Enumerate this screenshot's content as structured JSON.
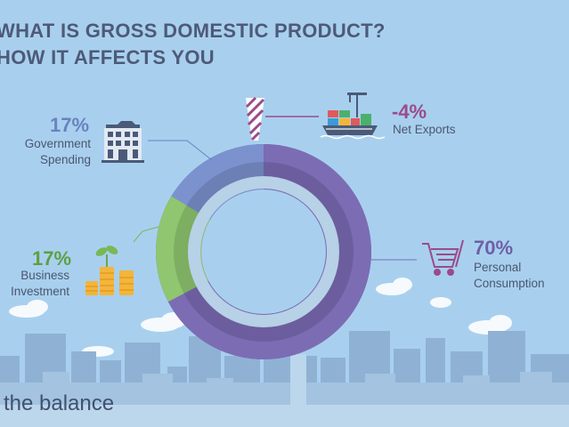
{
  "title": {
    "line1": "WHAT IS GROSS DOMESTIC PRODUCT?",
    "line2": "HOW IT AFFECTS YOU"
  },
  "brand": "the balance",
  "colors": {
    "background": "#a8d0ee",
    "government": "#7b92cf",
    "business": "#8fc66f",
    "consumption": "#7c6cb4",
    "net_exports": "#9b4b8a",
    "title_text": "#4d5a78"
  },
  "icons": {
    "government": "government-building-icon",
    "business": "coin-stacks-sprout-icon",
    "consumption": "shopping-cart-icon",
    "net_exports": "cargo-ship-icon"
  },
  "chart_data": {
    "type": "pie",
    "title": "WHAT IS GROSS DOMESTIC PRODUCT? HOW IT AFFECTS YOU",
    "slices": [
      {
        "key": "consumption",
        "name": "Personal Consumption",
        "value": 70,
        "label": "70%",
        "color": "#7c6cb4"
      },
      {
        "key": "business",
        "name": "Business Investment",
        "value": 17,
        "label": "17%",
        "color": "#8fc66f"
      },
      {
        "key": "government",
        "name": "Government Spending",
        "value": 17,
        "label": "17%",
        "color": "#7b92cf"
      },
      {
        "key": "net_exports",
        "name": "Net Exports",
        "value": -4,
        "label": "-4%",
        "color": "#9b4b8a"
      }
    ]
  }
}
